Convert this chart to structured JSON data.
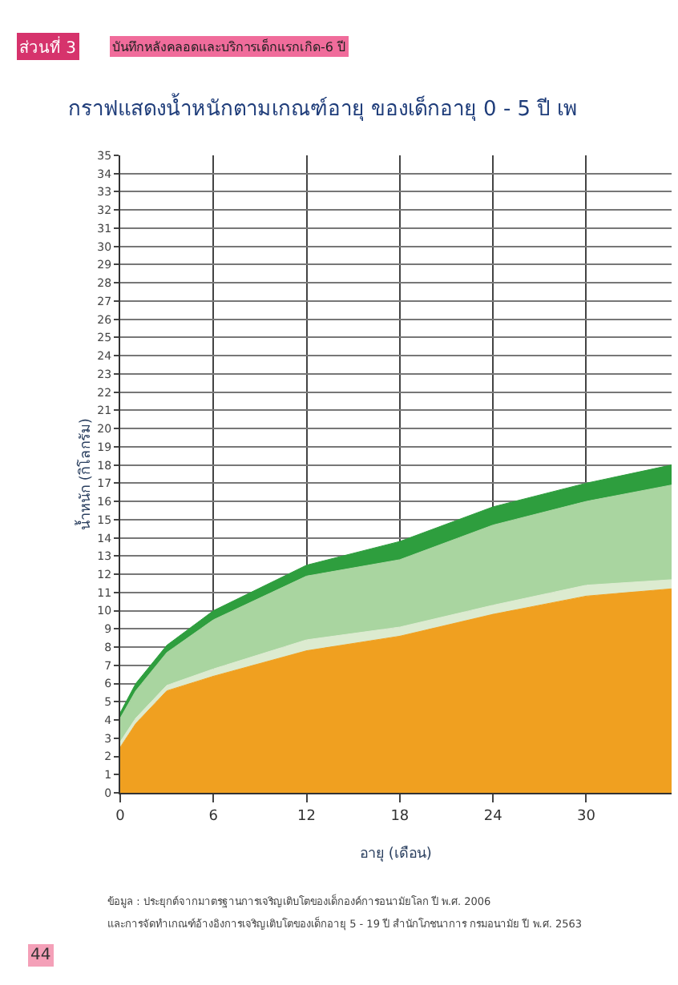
{
  "chart_data": {
    "type": "area",
    "title": "กราฟแสดงน้ำหนักตามเกณฑ์อายุ ของเด็กอายุ 0 - 5 ปี เพ",
    "xlabel": "อายุ (เดือน)",
    "ylabel": "น้ำหนัก (กิโลกรัม)",
    "annotations": [
      "ส่วนที่ 3",
      "บันทึกหลังคลอดและบริการเด็กแรกเกิด-6 ปี",
      "ข้อมูล : ประยุกต์จากมาตรฐานการเจริญเติบโตของเด็กองค์การอนามัยโลก ปี พ.ศ. 2006",
      "และการจัดทำเกณฑ์อ้างอิงการเจริญเติบโตของเด็กอายุ 5 - 19 ปี สำนักโภชนาการ กรมอนามัย ปี พ.ศ. 2563",
      "44"
    ],
    "x": [
      0,
      1,
      3,
      6,
      12,
      18,
      24,
      30,
      35.5
    ],
    "stacked": true,
    "series": [
      {
        "color": "#f0a020",
        "values": [
          2.5,
          3.8,
          5.6,
          6.4,
          7.8,
          8.6,
          9.8,
          10.8,
          11.2
        ]
      },
      {
        "color": "#dcebd0",
        "values": [
          0.3,
          0.3,
          0.3,
          0.4,
          0.6,
          0.5,
          0.5,
          0.6,
          0.5
        ]
      },
      {
        "color": "#a9d5a0",
        "values": [
          1.3,
          1.5,
          1.8,
          2.7,
          3.5,
          3.7,
          4.4,
          4.6,
          5.2
        ]
      },
      {
        "color": "#2e9e3e",
        "values": [
          0.3,
          0.4,
          0.4,
          0.5,
          0.6,
          1.0,
          1.0,
          1.0,
          1.1
        ]
      }
    ],
    "xlim": [
      0,
      35.5
    ],
    "xticks": [
      0,
      6,
      12,
      18,
      24,
      30
    ],
    "ylim": [
      0,
      35
    ],
    "yticks": [
      0,
      1,
      2,
      3,
      4,
      5,
      6,
      7,
      8,
      9,
      10,
      11,
      12,
      13,
      14,
      15,
      16,
      17,
      18,
      19,
      20,
      21,
      22,
      23,
      24,
      25,
      26,
      27,
      28,
      29,
      30,
      31,
      32,
      33,
      34,
      35
    ],
    "grid": true
  }
}
